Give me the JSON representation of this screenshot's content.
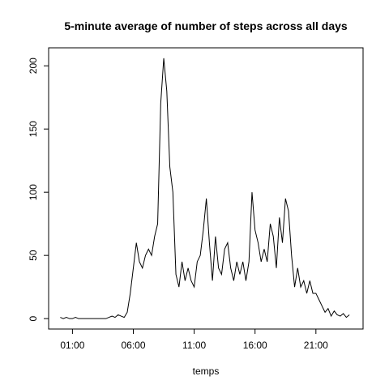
{
  "chart_data": {
    "type": "line",
    "title": "5-minute average of number of steps across all days",
    "x_label": "temps",
    "x": [
      0,
      15,
      30,
      45,
      60,
      75,
      90,
      105,
      120,
      135,
      150,
      165,
      180,
      195,
      210,
      225,
      240,
      255,
      270,
      285,
      300,
      315,
      330,
      345,
      360,
      375,
      390,
      405,
      420,
      435,
      450,
      465,
      480,
      495,
      510,
      525,
      540,
      555,
      570,
      585,
      600,
      615,
      630,
      645,
      660,
      675,
      690,
      705,
      720,
      735,
      750,
      765,
      780,
      795,
      810,
      825,
      840,
      855,
      870,
      885,
      900,
      915,
      930,
      945,
      960,
      975,
      990,
      1005,
      1020,
      1035,
      1050,
      1065,
      1080,
      1095,
      1110,
      1125,
      1140,
      1155,
      1170,
      1185,
      1200,
      1215,
      1230,
      1245,
      1260,
      1275,
      1290,
      1305,
      1320,
      1335,
      1350,
      1365,
      1380,
      1395,
      1410,
      1425
    ],
    "values": [
      1,
      0,
      1,
      0,
      0,
      1,
      0,
      0,
      0,
      0,
      0,
      0,
      0,
      0,
      0,
      0,
      1,
      2,
      1,
      3,
      2,
      1,
      5,
      20,
      40,
      60,
      45,
      40,
      50,
      55,
      50,
      65,
      75,
      170,
      206,
      180,
      120,
      100,
      35,
      25,
      45,
      30,
      40,
      30,
      25,
      45,
      50,
      70,
      95,
      60,
      30,
      65,
      40,
      35,
      55,
      60,
      40,
      30,
      45,
      35,
      45,
      30,
      45,
      100,
      70,
      60,
      45,
      55,
      45,
      75,
      65,
      40,
      80,
      60,
      95,
      85,
      50,
      25,
      40,
      25,
      30,
      20,
      30,
      20,
      20,
      15,
      10,
      5,
      8,
      2,
      6,
      3,
      2,
      4,
      1,
      3
    ],
    "color": "#000000",
    "xlim": [
      -57.4,
      1492.4
    ],
    "xticks": [
      {
        "value": 60,
        "label": "01:00"
      },
      {
        "value": 360,
        "label": "06:00"
      },
      {
        "value": 660,
        "label": "11:00"
      },
      {
        "value": 960,
        "label": "16:00"
      },
      {
        "value": 1260,
        "label": "21:00"
      }
    ],
    "ylim": [
      -8.24,
      214.24
    ],
    "yticks": [
      0,
      50,
      100,
      150,
      200
    ]
  }
}
